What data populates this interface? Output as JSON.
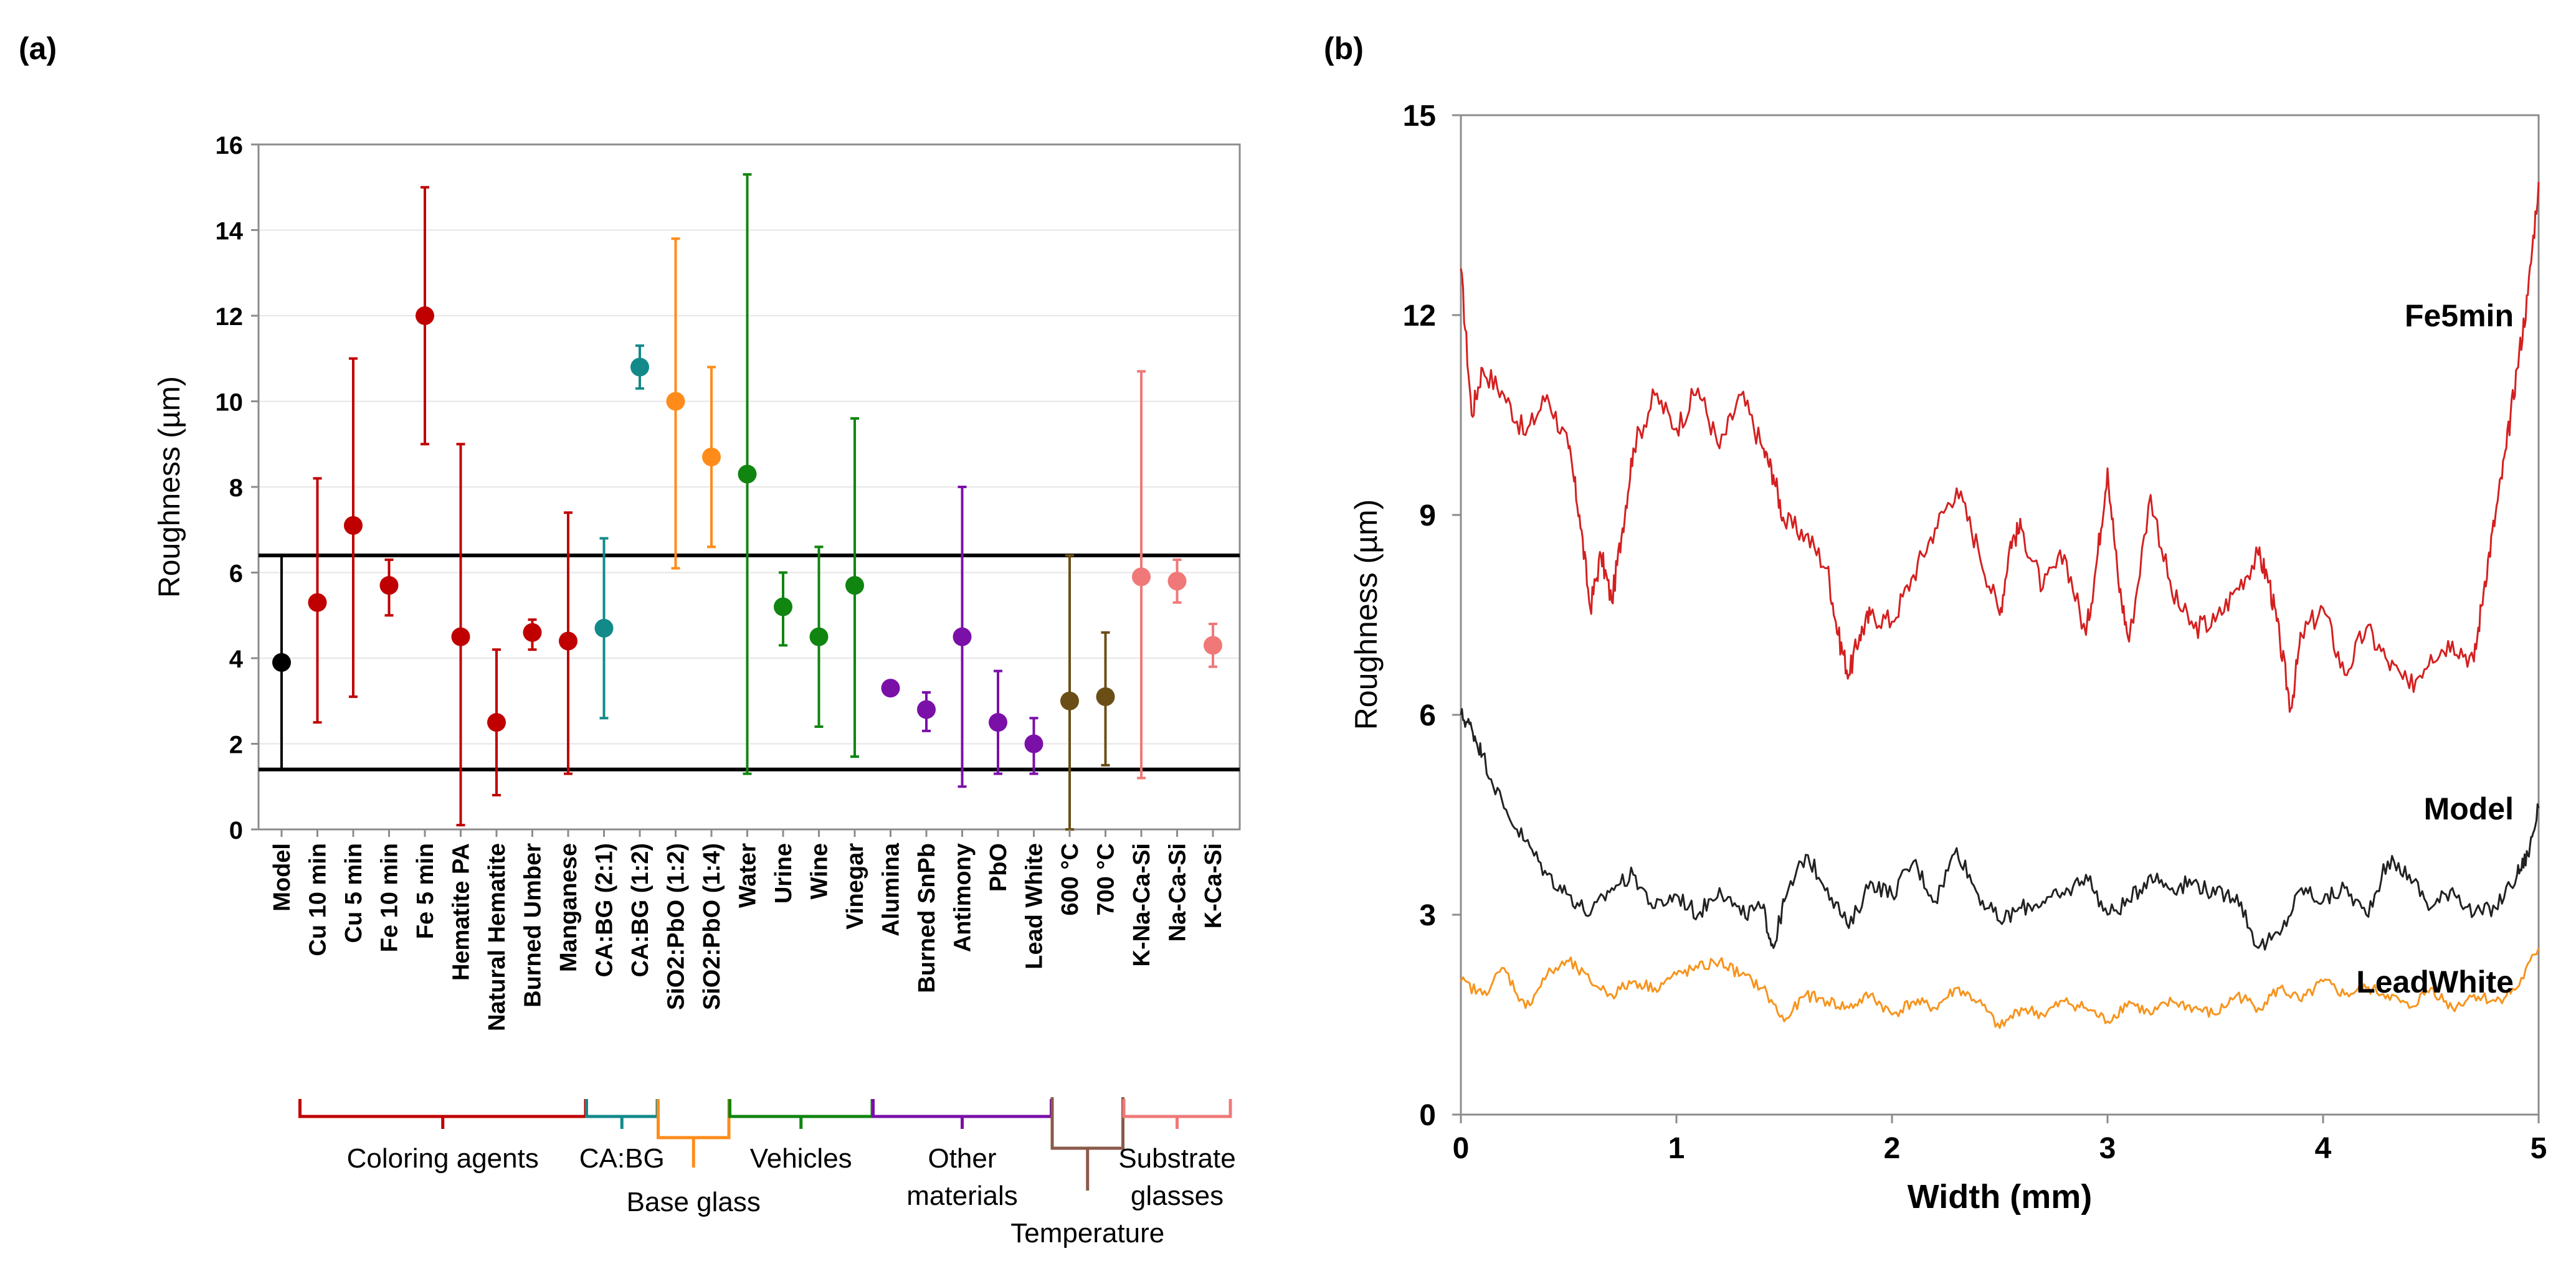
{
  "panel_labels": {
    "a": "(a)",
    "b": "(b)"
  },
  "chart_data": [
    {
      "type": "scatter",
      "subtype": "points-with-error-bars",
      "panel": "(a)",
      "ylabel": "Roughness (µm)",
      "ylim": [
        0,
        16
      ],
      "yticks": [
        0,
        2,
        4,
        6,
        8,
        10,
        12,
        14,
        16
      ],
      "reference_lines": [
        6.4,
        1.4
      ],
      "points": [
        {
          "label": "Model",
          "y": 3.9,
          "low": 1.4,
          "high": 6.4,
          "color": "#000000",
          "group": "model"
        },
        {
          "label": "Cu 10 min",
          "y": 5.3,
          "low": 2.5,
          "high": 8.2,
          "color": "#c00000",
          "group": "coloring"
        },
        {
          "label": "Cu 5 min",
          "y": 7.1,
          "low": 3.1,
          "high": 11.0,
          "color": "#c00000",
          "group": "coloring"
        },
        {
          "label": "Fe 10 min",
          "y": 5.7,
          "low": 5.0,
          "high": 6.3,
          "color": "#c00000",
          "group": "coloring"
        },
        {
          "label": "Fe 5 min",
          "y": 12.0,
          "low": 9.0,
          "high": 15.0,
          "color": "#c00000",
          "group": "coloring"
        },
        {
          "label": "Hematite PA",
          "y": 4.5,
          "low": 0.1,
          "high": 9.0,
          "color": "#c00000",
          "group": "coloring"
        },
        {
          "label": "Natural Hematite",
          "y": 2.5,
          "low": 0.8,
          "high": 4.2,
          "color": "#c00000",
          "group": "coloring"
        },
        {
          "label": "Burned Umber",
          "y": 4.6,
          "low": 4.2,
          "high": 4.9,
          "color": "#c00000",
          "group": "coloring"
        },
        {
          "label": "Manganese",
          "y": 4.4,
          "low": 1.3,
          "high": 7.4,
          "color": "#c00000",
          "group": "coloring"
        },
        {
          "label": "CA:BG (2:1)",
          "y": 4.7,
          "low": 2.6,
          "high": 6.8,
          "color": "#138a8a",
          "group": "cabg"
        },
        {
          "label": "CA:BG (1:2)",
          "y": 10.8,
          "low": 10.3,
          "high": 11.3,
          "color": "#138a8a",
          "group": "cabg"
        },
        {
          "label": "SiO2:PbO (1:2)",
          "y": 10.0,
          "low": 6.1,
          "high": 13.8,
          "color": "#ff8c1a",
          "group": "baseglass"
        },
        {
          "label": "SiO2:PbO (1:4)",
          "y": 8.7,
          "low": 6.6,
          "high": 10.8,
          "color": "#ff8c1a",
          "group": "baseglass"
        },
        {
          "label": "Water",
          "y": 8.3,
          "low": 1.3,
          "high": 15.3,
          "color": "#108510",
          "group": "vehicles"
        },
        {
          "label": "Urine",
          "y": 5.2,
          "low": 4.3,
          "high": 6.0,
          "color": "#108510",
          "group": "vehicles"
        },
        {
          "label": "Wine",
          "y": 4.5,
          "low": 2.4,
          "high": 6.6,
          "color": "#108510",
          "group": "vehicles"
        },
        {
          "label": "Vinegar",
          "y": 5.7,
          "low": 1.7,
          "high": 9.6,
          "color": "#108510",
          "group": "vehicles"
        },
        {
          "label": "Alumina",
          "y": 3.3,
          "low": 3.3,
          "high": 3.3,
          "color": "#7a10a8",
          "group": "other"
        },
        {
          "label": "Burned SnPb",
          "y": 2.8,
          "low": 2.3,
          "high": 3.2,
          "color": "#7a10a8",
          "group": "other"
        },
        {
          "label": "Antimony",
          "y": 4.5,
          "low": 1.0,
          "high": 8.0,
          "color": "#7a10a8",
          "group": "other"
        },
        {
          "label": "PbO",
          "y": 2.5,
          "low": 1.3,
          "high": 3.7,
          "color": "#7a10a8",
          "group": "other"
        },
        {
          "label": "Lead White",
          "y": 2.0,
          "low": 1.3,
          "high": 2.6,
          "color": "#7a10a8",
          "group": "other"
        },
        {
          "label": "600 °C",
          "y": 3.0,
          "low": 0.0,
          "high": 6.4,
          "color": "#6b4e16",
          "group": "temperature"
        },
        {
          "label": "700 °C",
          "y": 3.1,
          "low": 1.5,
          "high": 4.6,
          "color": "#6b4e16",
          "group": "temperature"
        },
        {
          "label": "K-Na-Ca-Si",
          "y": 5.9,
          "low": 1.2,
          "high": 10.7,
          "color": "#f07878",
          "group": "substrate"
        },
        {
          "label": "Na-Ca-Si",
          "y": 5.8,
          "low": 5.3,
          "high": 6.3,
          "color": "#f07878",
          "group": "substrate"
        },
        {
          "label": "K-Ca-Si",
          "y": 4.3,
          "low": 3.8,
          "high": 4.8,
          "color": "#f07878",
          "group": "substrate"
        }
      ],
      "groups": [
        {
          "name": "Coloring agents",
          "from": "Cu 10 min",
          "to": "Manganese",
          "color": "#c00000",
          "label_pos": "below"
        },
        {
          "name": "CA:BG",
          "from": "CA:BG (2:1)",
          "to": "CA:BG (1:2)",
          "color": "#138a8a",
          "label_pos": "below"
        },
        {
          "name": "Base glass",
          "from": "SiO2:PbO (1:2)",
          "to": "SiO2:PbO (1:4)",
          "color": "#ff8c1a",
          "label_pos": "below-low"
        },
        {
          "name": "Vehicles",
          "from": "Water",
          "to": "Vinegar",
          "color": "#108510",
          "label_pos": "below"
        },
        {
          "name": "Other\nmaterials",
          "from": "Alumina",
          "to": "Lead White",
          "color": "#7a10a8",
          "label_pos": "below"
        },
        {
          "name": "Temperature",
          "from": "600 °C",
          "to": "700 °C",
          "color": "#8a5a4a",
          "label_pos": "below-lowest"
        },
        {
          "name": "Substrate\nglasses",
          "from": "K-Na-Ca-Si",
          "to": "K-Ca-Si",
          "color": "#f07878",
          "label_pos": "below"
        }
      ]
    },
    {
      "type": "line",
      "panel": "(b)",
      "xlabel": "Width (mm)",
      "ylabel": "Roughness (µm)",
      "xlim": [
        0,
        5
      ],
      "ylim": [
        0,
        15
      ],
      "xticks": [
        0,
        1,
        2,
        3,
        4,
        5
      ],
      "yticks": [
        0,
        3,
        6,
        9,
        12,
        15
      ],
      "series": [
        {
          "name": "Fe5min",
          "color": "#d42020",
          "x": [
            0,
            0.05,
            0.1,
            0.2,
            0.3,
            0.4,
            0.5,
            0.55,
            0.6,
            0.65,
            0.7,
            0.75,
            0.8,
            0.9,
            1.0,
            1.1,
            1.2,
            1.3,
            1.4,
            1.45,
            1.5,
            1.6,
            1.7,
            1.75,
            1.8,
            1.85,
            1.9,
            2.0,
            2.1,
            2.2,
            2.3,
            2.4,
            2.5,
            2.55,
            2.6,
            2.7,
            2.8,
            2.9,
            2.95,
            3.0,
            3.05,
            3.1,
            3.2,
            3.3,
            3.4,
            3.5,
            3.6,
            3.7,
            3.75,
            3.8,
            3.85,
            3.9,
            4.0,
            4.1,
            4.2,
            4.3,
            4.4,
            4.5,
            4.6,
            4.7,
            4.75,
            4.8,
            4.85,
            4.9,
            4.95,
            5.0
          ],
          "y": [
            12.7,
            10.5,
            11.2,
            10.8,
            10.2,
            10.8,
            10.0,
            9.0,
            7.6,
            8.4,
            7.7,
            8.8,
            10.0,
            10.8,
            10.3,
            10.9,
            10.0,
            10.8,
            10.0,
            9.6,
            8.9,
            8.7,
            8.2,
            7.2,
            6.6,
            7.2,
            7.5,
            7.4,
            8.1,
            8.8,
            9.4,
            8.5,
            7.5,
            8.6,
            8.8,
            7.9,
            8.4,
            7.2,
            8.3,
            9.7,
            8.0,
            7.1,
            9.3,
            7.8,
            7.3,
            7.4,
            7.9,
            8.4,
            8.0,
            7.1,
            6.1,
            7.2,
            7.6,
            6.6,
            7.3,
            6.8,
            6.4,
            6.9,
            7.1,
            6.8,
            8.0,
            9.0,
            10.0,
            11.2,
            12.3,
            14.0
          ]
        },
        {
          "name": "Model",
          "color": "#222222",
          "x": [
            0,
            0.05,
            0.1,
            0.2,
            0.3,
            0.4,
            0.5,
            0.6,
            0.7,
            0.8,
            0.9,
            1.0,
            1.1,
            1.2,
            1.3,
            1.4,
            1.45,
            1.5,
            1.6,
            1.7,
            1.8,
            1.9,
            2.0,
            2.1,
            2.2,
            2.3,
            2.4,
            2.5,
            2.6,
            2.7,
            2.8,
            2.9,
            3.0,
            3.1,
            3.2,
            3.3,
            3.4,
            3.5,
            3.6,
            3.7,
            3.8,
            3.9,
            4.0,
            4.1,
            4.2,
            4.3,
            4.4,
            4.5,
            4.6,
            4.7,
            4.8,
            4.9,
            4.95,
            5.0
          ],
          "y": [
            6.0,
            5.8,
            5.4,
            4.6,
            4.1,
            3.6,
            3.3,
            3.0,
            3.4,
            3.6,
            3.1,
            3.3,
            3.0,
            3.4,
            3.0,
            3.1,
            2.5,
            3.2,
            3.9,
            3.4,
            2.8,
            3.5,
            3.3,
            3.8,
            3.2,
            4.0,
            3.3,
            2.9,
            3.1,
            3.2,
            3.3,
            3.6,
            3.0,
            3.2,
            3.6,
            3.4,
            3.5,
            3.3,
            3.3,
            2.5,
            2.7,
            3.4,
            3.2,
            3.4,
            3.0,
            3.8,
            3.6,
            3.1,
            3.4,
            3.0,
            3.1,
            3.6,
            3.9,
            4.6
          ]
        },
        {
          "name": "LeadWhite",
          "color": "#f7941d",
          "x": [
            0,
            0.1,
            0.2,
            0.3,
            0.4,
            0.5,
            0.6,
            0.7,
            0.8,
            0.9,
            1.0,
            1.1,
            1.2,
            1.3,
            1.4,
            1.5,
            1.6,
            1.7,
            1.8,
            1.9,
            2.0,
            2.1,
            2.2,
            2.3,
            2.4,
            2.5,
            2.6,
            2.7,
            2.8,
            2.9,
            3.0,
            3.1,
            3.2,
            3.3,
            3.4,
            3.5,
            3.6,
            3.7,
            3.8,
            3.9,
            4.0,
            4.1,
            4.2,
            4.3,
            4.4,
            4.5,
            4.6,
            4.7,
            4.8,
            4.9,
            5.0
          ],
          "y": [
            2.0,
            1.8,
            2.2,
            1.6,
            2.1,
            2.3,
            2.0,
            1.8,
            2.0,
            1.9,
            2.1,
            2.2,
            2.3,
            2.1,
            1.9,
            1.4,
            1.8,
            1.7,
            1.6,
            1.8,
            1.5,
            1.7,
            1.6,
            1.9,
            1.7,
            1.3,
            1.6,
            1.5,
            1.7,
            1.6,
            1.4,
            1.7,
            1.5,
            1.7,
            1.6,
            1.5,
            1.8,
            1.6,
            1.9,
            1.7,
            2.0,
            1.8,
            1.9,
            1.8,
            1.6,
            1.9,
            1.6,
            1.8,
            1.7,
            1.9,
            2.5
          ]
        }
      ],
      "series_labels": [
        "Fe5min",
        "Model",
        "LeadWhite"
      ]
    }
  ]
}
